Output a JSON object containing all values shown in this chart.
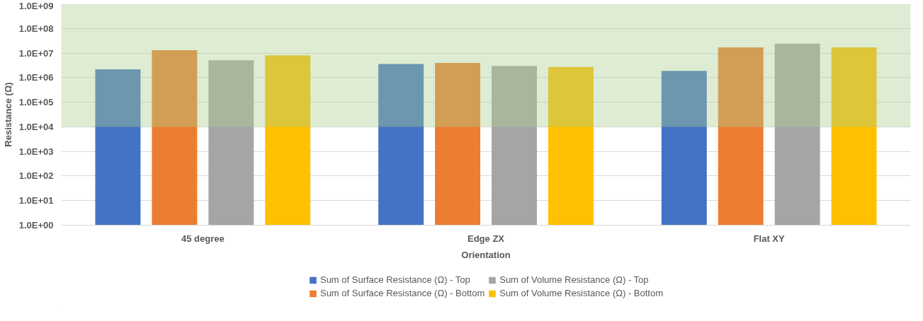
{
  "chart_data": {
    "type": "bar",
    "xlabel": "Orientation",
    "ylabel": "Resistance (Ω)",
    "categories": [
      "45 degree",
      "Edge ZX",
      "Flat XY"
    ],
    "series": [
      {
        "name": "Sum of Surface Resistance (Ω) - Top",
        "color": "#4472c4",
        "values": [
          2200000,
          3600000,
          1900000
        ]
      },
      {
        "name": "Sum of Surface Resistance (Ω) - Bottom",
        "color": "#ed7d31",
        "values": [
          13000000,
          4000000,
          17000000
        ]
      },
      {
        "name": "Sum of Volume Resistance (Ω) - Top",
        "color": "#a5a5a5",
        "values": [
          5100000,
          3000000,
          24000000
        ]
      },
      {
        "name": "Sum of Volume Resistance (Ω) - Bottom",
        "color": "#ffc000",
        "values": [
          8100000,
          2700000,
          17000000
        ]
      }
    ],
    "log": "y",
    "ylim": [
      1,
      1000000000
    ],
    "yticks": [
      {
        "value": 1,
        "label": "1.0E+00"
      },
      {
        "value": 10,
        "label": "1.0E+01"
      },
      {
        "value": 100,
        "label": "1.0E+02"
      },
      {
        "value": 1000,
        "label": "1.0E+03"
      },
      {
        "value": 10000,
        "label": "1.0E+04"
      },
      {
        "value": 100000,
        "label": "1.0E+05"
      },
      {
        "value": 1000000,
        "label": "1.0E+06"
      },
      {
        "value": 10000000,
        "label": "1.0E+07"
      },
      {
        "value": 100000000,
        "label": "1.0E+08"
      },
      {
        "value": 1000000000,
        "label": "1.0E+09"
      }
    ],
    "bands": [
      {
        "axis": "y",
        "from": 10000,
        "to": 1000000000,
        "color": "#a9d08e"
      }
    ],
    "grid": "y",
    "legend": "bottom"
  }
}
